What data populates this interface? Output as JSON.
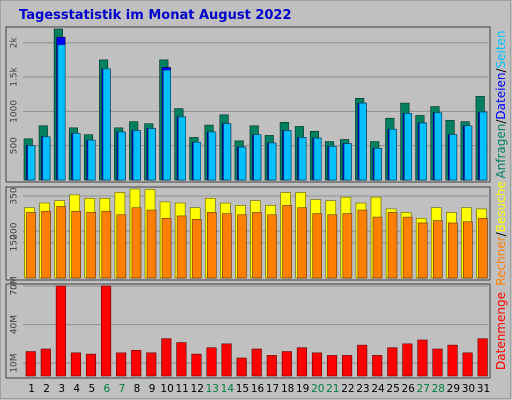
{
  "chart_data": {
    "type": "bar",
    "title": "Tagesstatistik im Monat August 2022",
    "categories": [
      "1",
      "2",
      "3",
      "4",
      "5",
      "6",
      "7",
      "8",
      "9",
      "10",
      "11",
      "12",
      "13",
      "14",
      "15",
      "16",
      "17",
      "18",
      "19",
      "20",
      "21",
      "22",
      "23",
      "24",
      "25",
      "26",
      "27",
      "28",
      "29",
      "30",
      "31"
    ],
    "weekend_days": [
      "6",
      "7",
      "13",
      "14",
      "20",
      "21",
      "27",
      "28"
    ],
    "colors": {
      "title": "#0000cc",
      "background": "#c0c0c0",
      "weekend_label": "#008040",
      "anfragen": "#008060",
      "seiten": "#00c0ff",
      "dateien": "#0000ff",
      "besuche": "#ffff00",
      "rechner": "#ff8000",
      "datenmenge": "#ff0000"
    },
    "panels": [
      {
        "name": "requests",
        "y_ticks": [
          {
            "label": "500",
            "value": 500
          },
          {
            "label": "1000",
            "value": 1000
          },
          {
            "label": "1.5k",
            "value": 1500
          },
          {
            "label": "2k",
            "value": 2000
          }
        ],
        "y_max": 2200,
        "side_labels": [
          {
            "text": "Anfragen",
            "color": "#008060"
          },
          {
            "text": "/",
            "color": "#000000"
          },
          {
            "text": "Dateien",
            "color": "#0000ff"
          },
          {
            "text": "/",
            "color": "#000000"
          },
          {
            "text": "Seiten",
            "color": "#00c0ff"
          }
        ],
        "series": [
          {
            "name": "Anfragen",
            "values": [
              600,
              790,
              2200,
              760,
              660,
              1750,
              760,
              850,
              820,
              1750,
              1040,
              620,
              800,
              950,
              570,
              790,
              650,
              840,
              780,
              710,
              560,
              590,
              1190,
              560,
              900,
              1120,
              940,
              1070,
              870,
              850,
              1220
            ]
          },
          {
            "name": "Dateien",
            "values": [
              500,
              630,
              2080,
              680,
              580,
              1620,
              700,
              720,
              750,
              1640,
              920,
              550,
              700,
              820,
              480,
              660,
              540,
              720,
              620,
              610,
              490,
              530,
              1120,
              460,
              740,
              970,
              830,
              980,
              660,
              790,
              990
            ]
          },
          {
            "name": "Seiten",
            "values": [
              500,
              630,
              1970,
              680,
              580,
              1620,
              700,
              720,
              750,
              1600,
              920,
              550,
              700,
              820,
              480,
              660,
              540,
              720,
              620,
              610,
              490,
              530,
              1120,
              460,
              740,
              970,
              830,
              980,
              660,
              790,
              990
            ]
          }
        ]
      },
      {
        "name": "visits",
        "y_ticks": [
          {
            "label": "150",
            "value": 150
          },
          {
            "label": "200",
            "value": 200
          },
          {
            "label": "350",
            "value": 350
          }
        ],
        "y_max": 380,
        "side_labels": [
          {
            "text": "Rechner",
            "color": "#ff8000"
          },
          {
            "text": "/",
            "color": "#000000"
          },
          {
            "text": "Besuche",
            "color": "#ffff00"
          }
        ],
        "series": [
          {
            "name": "Besuche",
            "values": [
              300,
              320,
              330,
              355,
              340,
              340,
              365,
              380,
              378,
              325,
              320,
              300,
              340,
              320,
              310,
              330,
              310,
              365,
              365,
              335,
              330,
              345,
              320,
              345,
              295,
              280,
              255,
              300,
              280,
              300,
              295
            ]
          },
          {
            "name": "Rechner",
            "values": [
              280,
              285,
              305,
              285,
              280,
              285,
              270,
              300,
              290,
              255,
              265,
              250,
              280,
              275,
              270,
              280,
              270,
              310,
              300,
              275,
              270,
              275,
              290,
              260,
              280,
              260,
              235,
              245,
              235,
              240,
              255
            ]
          }
        ]
      },
      {
        "name": "volume",
        "y_ticks": [
          {
            "label": "10M",
            "value": 10
          },
          {
            "label": "40M",
            "value": 40
          },
          {
            "label": "70M",
            "value": 70
          }
        ],
        "y_max": 70,
        "side_labels": [
          {
            "text": "Datenmenge",
            "color": "#ff0000"
          }
        ],
        "series": [
          {
            "name": "Datenmenge",
            "values": [
              19,
              21,
              70,
              18,
              17,
              70,
              18,
              20,
              18,
              29,
              26,
              17,
              22,
              25,
              14,
              21,
              16,
              19,
              22,
              18,
              16,
              16,
              24,
              16,
              22,
              25,
              28,
              21,
              24,
              18,
              29
            ]
          }
        ]
      }
    ]
  }
}
